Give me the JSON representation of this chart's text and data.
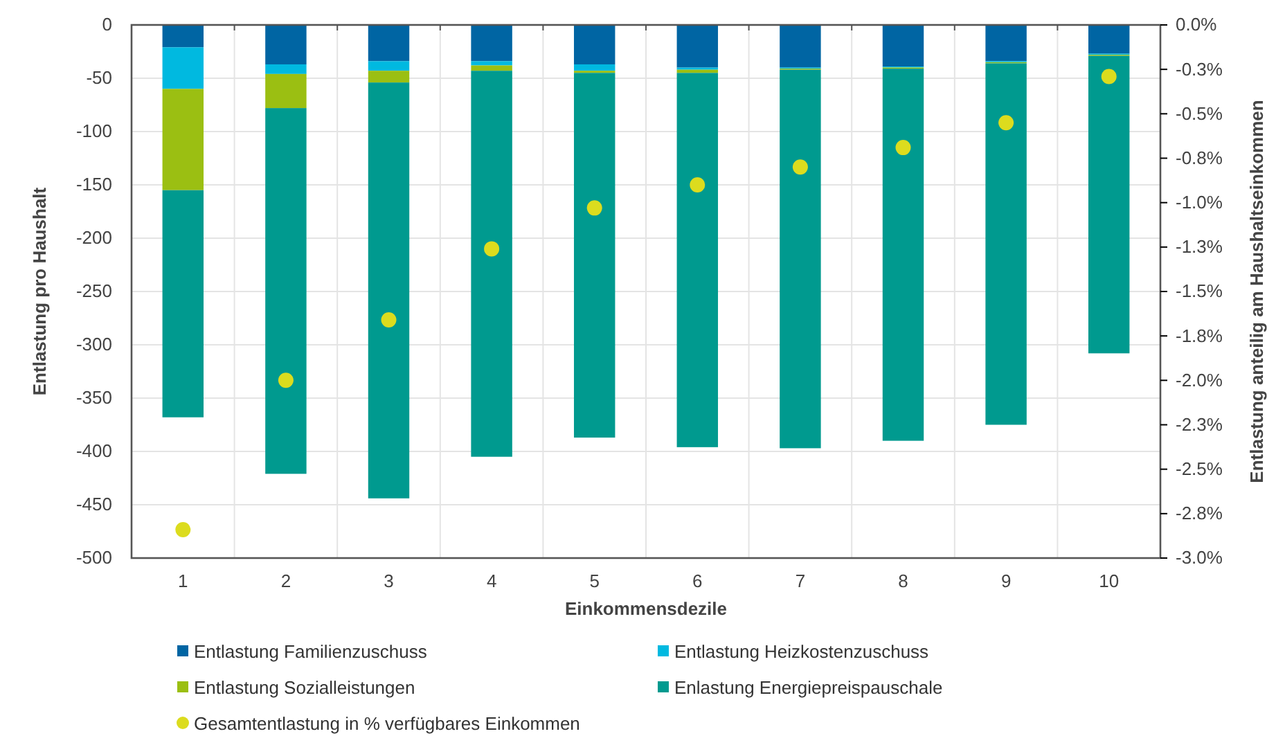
{
  "chart_data": {
    "type": "bar",
    "stacked": true,
    "xlabel": "Einkommensdezile",
    "ylabel": "Entlastung pro Haushalt",
    "y2label": "Entlastung anteilig am Haushaltseinkommen",
    "categories": [
      "1",
      "2",
      "3",
      "4",
      "5",
      "6",
      "7",
      "8",
      "9",
      "10"
    ],
    "series": [
      {
        "name": "Entlastung Familienzuschuss",
        "color": "#0065a3",
        "values": [
          -21,
          -37,
          -34,
          -34,
          -37,
          -40,
          -40,
          -39,
          -34,
          -27
        ]
      },
      {
        "name": "Entlastung Heizkostenzuschuss",
        "color": "#00b9e0",
        "values": [
          -39,
          -9,
          -9,
          -4,
          -6,
          -2,
          -1,
          -1,
          -1,
          -1
        ]
      },
      {
        "name": "Entlastung Sozialleistungen",
        "color": "#9bbf12",
        "values": [
          -95,
          -32,
          -11,
          -5,
          -2,
          -3,
          -1,
          -1,
          -1,
          -1
        ]
      },
      {
        "name": "Enlastung Energiepreispauschale",
        "color": "#009a8f",
        "values": [
          -213,
          -343,
          -390,
          -362,
          -342,
          -351,
          -355,
          -349,
          -339,
          -279
        ]
      },
      {
        "name": "Gesamtentlastung in % verfügbares Einkommen",
        "type": "scatter",
        "axis": "y2",
        "marker": "circle",
        "color": "#dcdc1e",
        "values": [
          -2.84,
          -2.0,
          -1.66,
          -1.26,
          -1.03,
          -0.9,
          -0.8,
          -0.69,
          -0.55,
          -0.29
        ]
      }
    ],
    "ylim": [
      -500,
      0
    ],
    "yticks": [
      -500,
      -450,
      -400,
      -350,
      -300,
      -250,
      -200,
      -150,
      -100,
      -50,
      0
    ],
    "y2lim": [
      -3,
      0
    ],
    "y2ticks": [
      {
        "value": -3,
        "label": "-3.0%"
      },
      {
        "value": -2.75,
        "label": "-2.8%"
      },
      {
        "value": -2.5,
        "label": "-2.5%"
      },
      {
        "value": -2.25,
        "label": "-2.3%"
      },
      {
        "value": -2,
        "label": "-2.0%"
      },
      {
        "value": -1.75,
        "label": "-1.8%"
      },
      {
        "value": -1.5,
        "label": "-1.5%"
      },
      {
        "value": -1.25,
        "label": "-1.3%"
      },
      {
        "value": -1,
        "label": "-1.0%"
      },
      {
        "value": -0.75,
        "label": "-0.8%"
      },
      {
        "value": -0.5,
        "label": "-0.5%"
      },
      {
        "value": -0.25,
        "label": "-0.3%"
      },
      {
        "value": 0,
        "label": "0.0%"
      }
    ],
    "grid": true,
    "legend": "bottom"
  }
}
